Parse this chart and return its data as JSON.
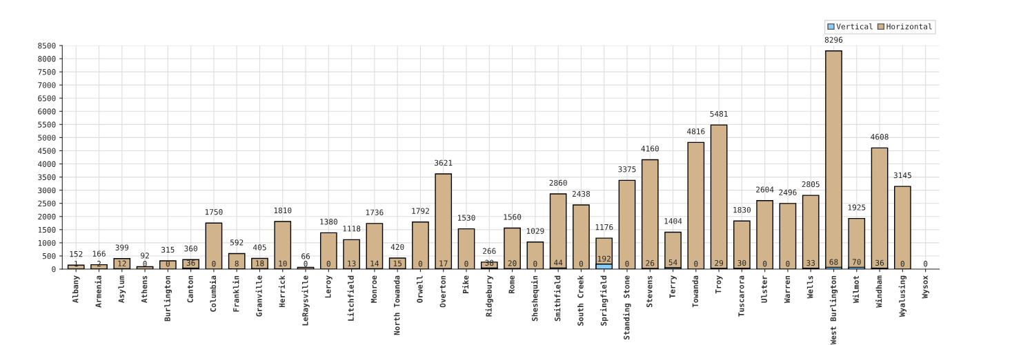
{
  "chart_data": {
    "type": "bar",
    "categories": [
      "Albany",
      "Armenia",
      "Asylum",
      "Athens",
      "Burlington",
      "Canton",
      "Columbia",
      "Franklin",
      "Granville",
      "Herrick",
      "LeRaysville",
      "Leroy",
      "Litchfield",
      "Monroe",
      "North Towanda",
      "Orwell",
      "Overton",
      "Pike",
      "Ridgebury",
      "Rome",
      "Sheshequin",
      "Smithfield",
      "South Creek",
      "Springfield",
      "Standing Stone",
      "Stevens",
      "Terry",
      "Towanda",
      "Troy",
      "Tuscarora",
      "Ulster",
      "Warren",
      "Wells",
      "West Burlington",
      "Wilmot",
      "Windham",
      "Wyalusing",
      "Wysox"
    ],
    "series": [
      {
        "name": "Vertical",
        "color": "#87cefa",
        "values": [
          1,
          2,
          12,
          0,
          0,
          36,
          0,
          8,
          18,
          10,
          0,
          0,
          13,
          14,
          15,
          0,
          17,
          0,
          38,
          20,
          0,
          44,
          0,
          192,
          0,
          26,
          54,
          0,
          29,
          30,
          0,
          0,
          33,
          68,
          70,
          36,
          0,
          0
        ]
      },
      {
        "name": "Horizontal",
        "color": "#d2b48c",
        "values": [
          152,
          166,
          399,
          92,
          315,
          360,
          1750,
          592,
          405,
          1810,
          66,
          1380,
          1118,
          1736,
          420,
          1792,
          3621,
          1530,
          266,
          1560,
          1029,
          2860,
          2438,
          1176,
          3375,
          4160,
          1404,
          4816,
          5481,
          1830,
          2604,
          2496,
          2805,
          8296,
          1925,
          4608,
          3145,
          0
        ],
        "value_labels": [
          "152",
          "166",
          "399",
          "92",
          "315",
          "360",
          "1750",
          "592",
          "405",
          "1810",
          "66",
          "1380",
          "1118",
          "1736",
          "420",
          "1792",
          "3621",
          "1530",
          "266",
          "1560",
          "1029",
          "2860",
          "2438",
          "1176",
          "3375",
          "4160",
          "1404",
          "4816",
          "5481",
          "1830",
          "2604",
          "2496",
          "2805",
          "8296",
          "1925",
          "4608",
          "3145",
          null
        ]
      }
    ],
    "ylim": [
      0,
      8500
    ],
    "yticks": [
      0,
      500,
      1000,
      1500,
      2000,
      2500,
      3000,
      3500,
      4000,
      4500,
      5000,
      5500,
      6000,
      6500,
      7000,
      7500,
      8000,
      8500
    ],
    "grid": true,
    "legend": "top right",
    "data_labels": true
  }
}
